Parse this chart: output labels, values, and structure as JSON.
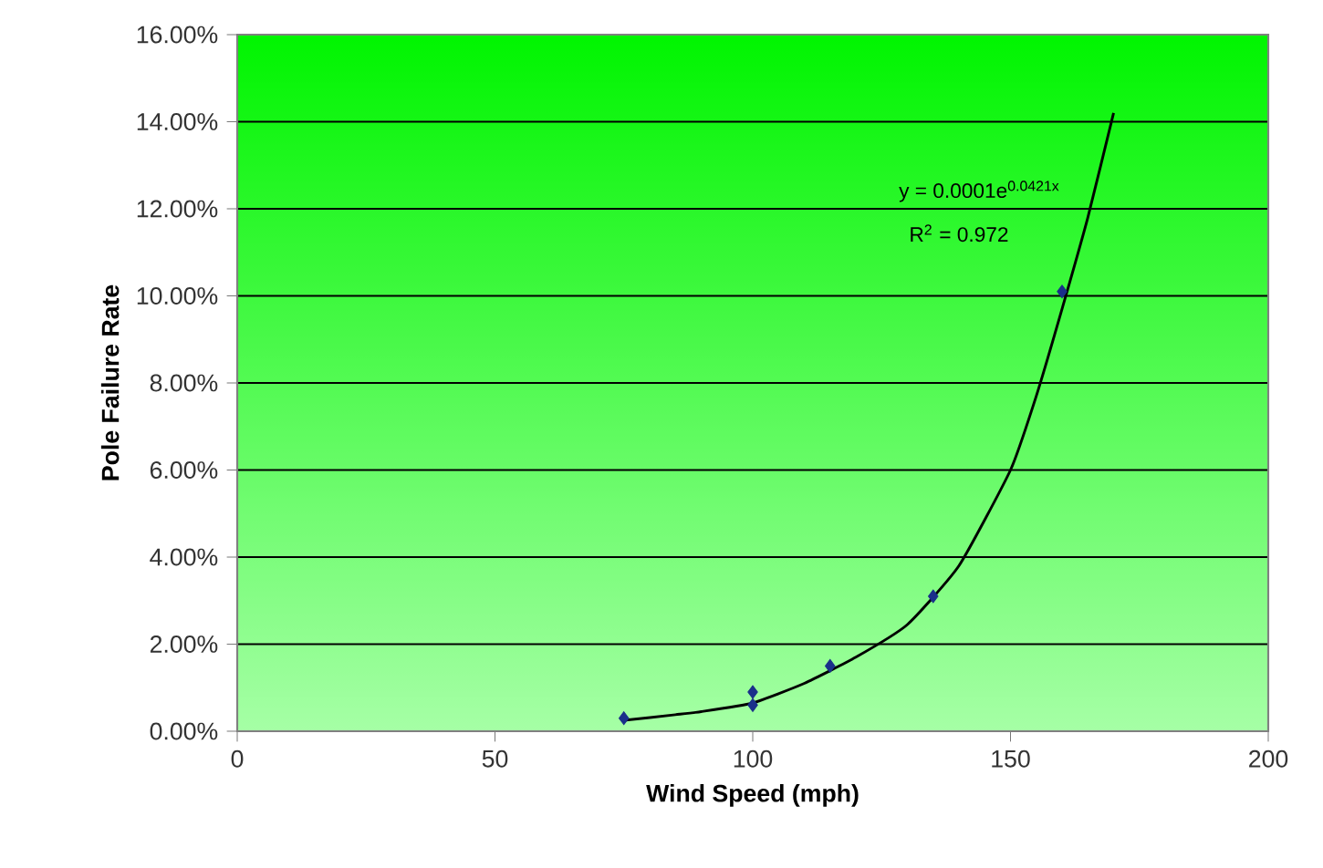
{
  "chart_data": {
    "type": "scatter",
    "xlabel": "Wind Speed (mph)",
    "ylabel": "Pole Failure Rate",
    "xlim": [
      0,
      200
    ],
    "xticks": [
      0,
      50,
      100,
      150,
      200
    ],
    "ylim": [
      0,
      16
    ],
    "yticks": [
      {
        "value": 0,
        "label": "0.00%"
      },
      {
        "value": 2,
        "label": "2.00%"
      },
      {
        "value": 4,
        "label": "4.00%"
      },
      {
        "value": 6,
        "label": "6.00%"
      },
      {
        "value": 8,
        "label": "8.00%"
      },
      {
        "value": 10,
        "label": "10.00%"
      },
      {
        "value": 12,
        "label": "12.00%"
      },
      {
        "value": 14,
        "label": "14.00%"
      },
      {
        "value": 16,
        "label": "16.00%"
      }
    ],
    "grid": "y",
    "marker": "diamond",
    "series": [
      {
        "color": "#1a2f8a",
        "x": [
          75,
          100,
          100,
          115,
          135,
          160
        ],
        "values": [
          0.3,
          0.9,
          0.6,
          1.5,
          3.1,
          10.1
        ]
      },
      {
        "type": "line",
        "color": "#000000",
        "marker": "none",
        "line_style": "solid",
        "x": [
          75,
          85,
          90,
          100,
          110,
          120,
          130,
          140,
          150,
          155,
          160,
          165,
          170
        ],
        "values": [
          0.25,
          0.38,
          0.45,
          0.65,
          1.1,
          1.7,
          2.45,
          3.8,
          6.0,
          7.7,
          9.7,
          11.8,
          14.2
        ]
      }
    ],
    "annotations": [
      "y = 0.0001e$^{0.0421x}$",
      "R$^{2}$ = 0.972"
    ]
  }
}
